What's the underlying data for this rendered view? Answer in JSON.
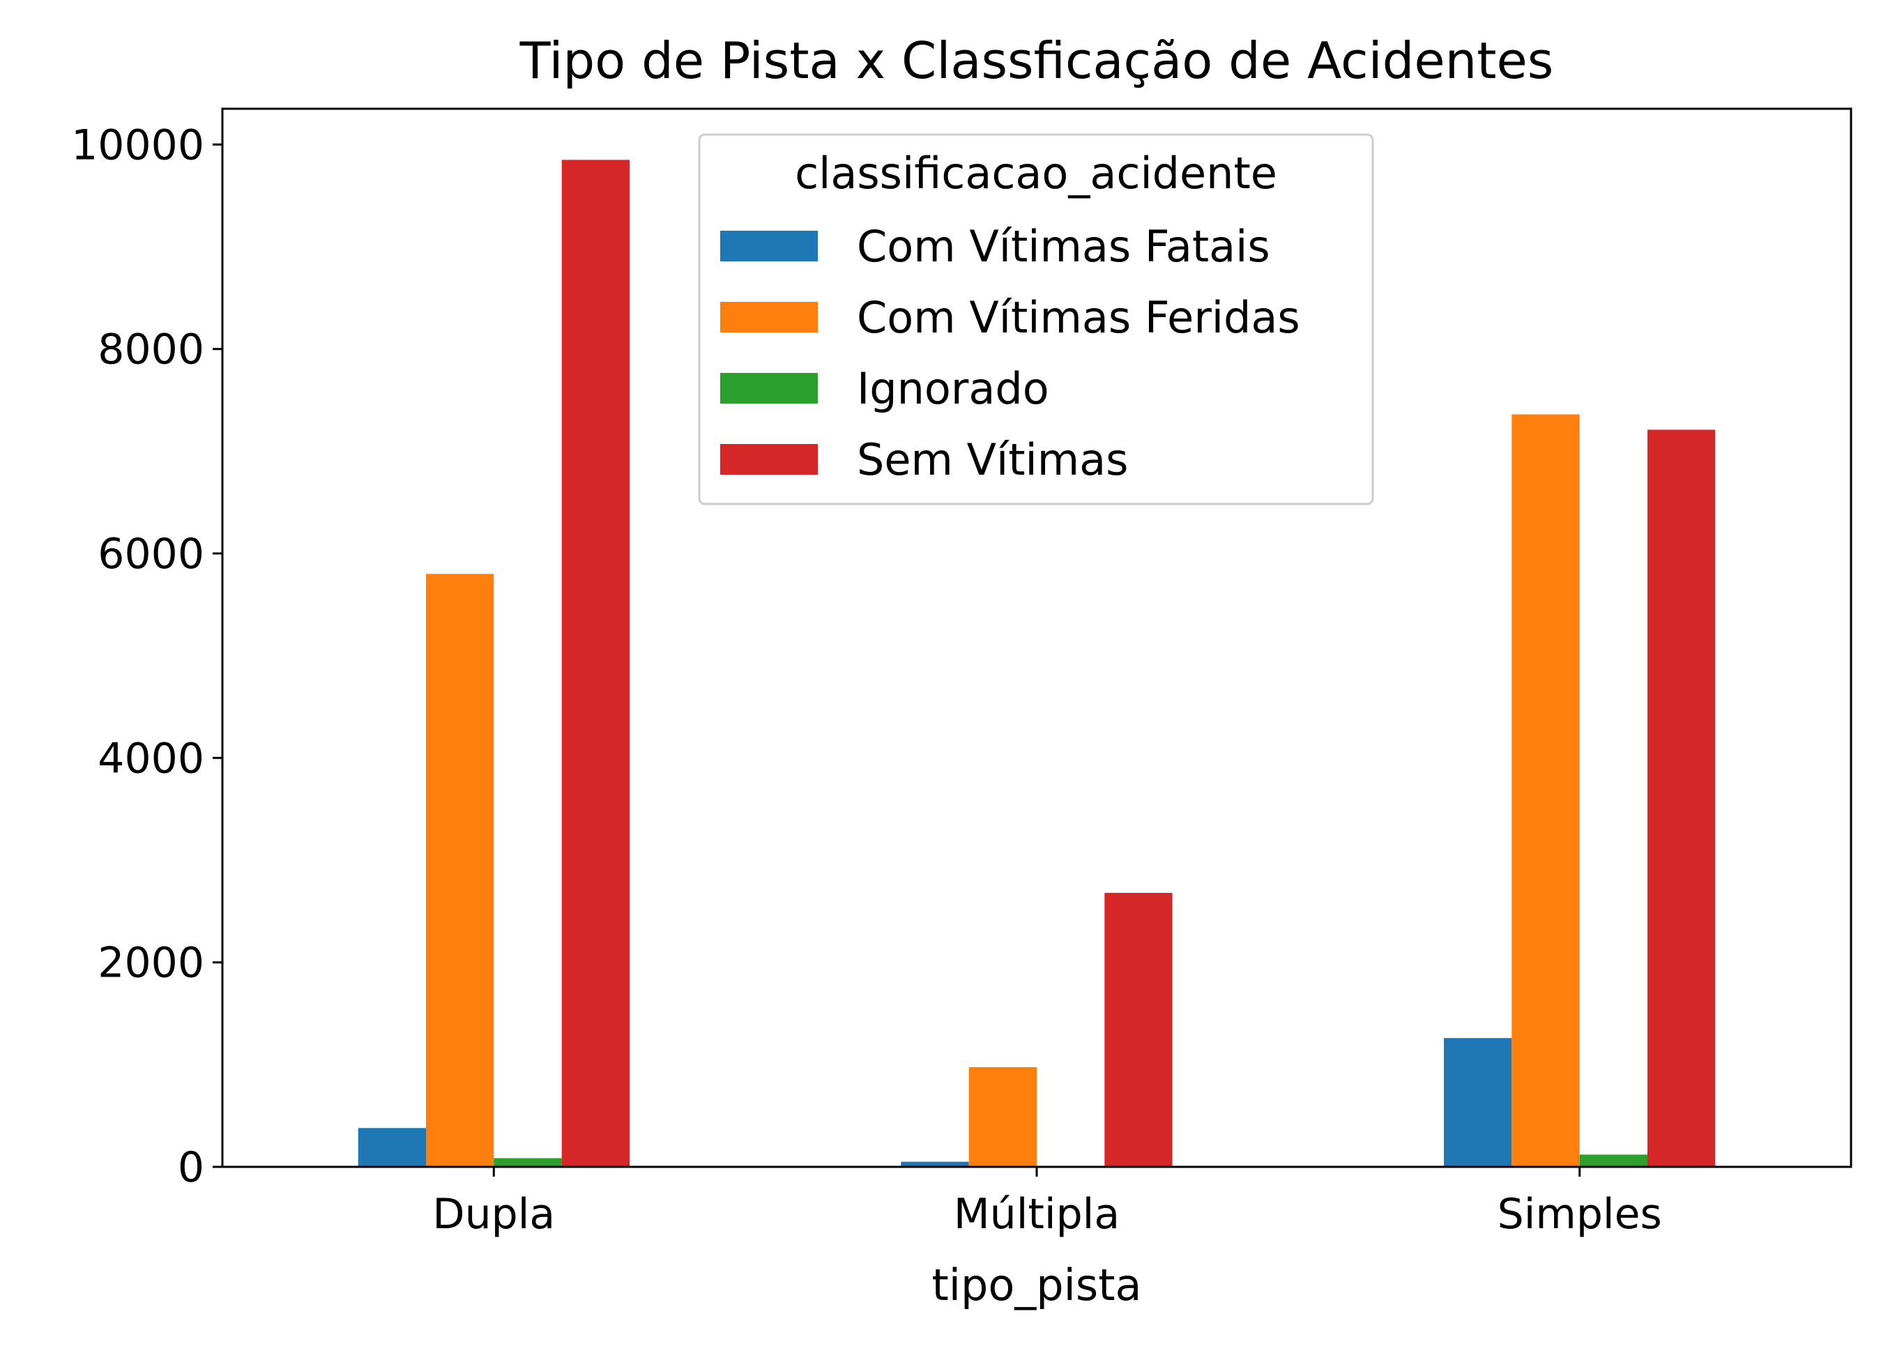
{
  "chart_data": {
    "type": "bar",
    "title": "Tipo de Pista x Classficação de Acidentes",
    "xlabel": "tipo_pista",
    "ylabel": "",
    "categories": [
      "Dupla",
      "Múltipla",
      "Simples"
    ],
    "ylim": [
      0,
      10350
    ],
    "yticks": [
      0,
      2000,
      4000,
      6000,
      8000,
      10000
    ],
    "ytick_labels": [
      "0",
      "2000",
      "4000",
      "6000",
      "8000",
      "10000"
    ],
    "grid": false,
    "legend": {
      "title": "classificacao_acidente",
      "placement": "top-center"
    },
    "series": [
      {
        "name": "Com Vítimas Fatais",
        "color": "#1f77b4",
        "values": [
          380,
          50,
          1260
        ]
      },
      {
        "name": "Com Vítimas Feridas",
        "color": "#ff7f0e",
        "values": [
          5800,
          975,
          7360
        ]
      },
      {
        "name": "Ignorado",
        "color": "#2ca02c",
        "values": [
          85,
          5,
          120
        ]
      },
      {
        "name": "Sem Vítimas",
        "color": "#d62728",
        "values": [
          9850,
          2680,
          7210
        ]
      }
    ]
  }
}
